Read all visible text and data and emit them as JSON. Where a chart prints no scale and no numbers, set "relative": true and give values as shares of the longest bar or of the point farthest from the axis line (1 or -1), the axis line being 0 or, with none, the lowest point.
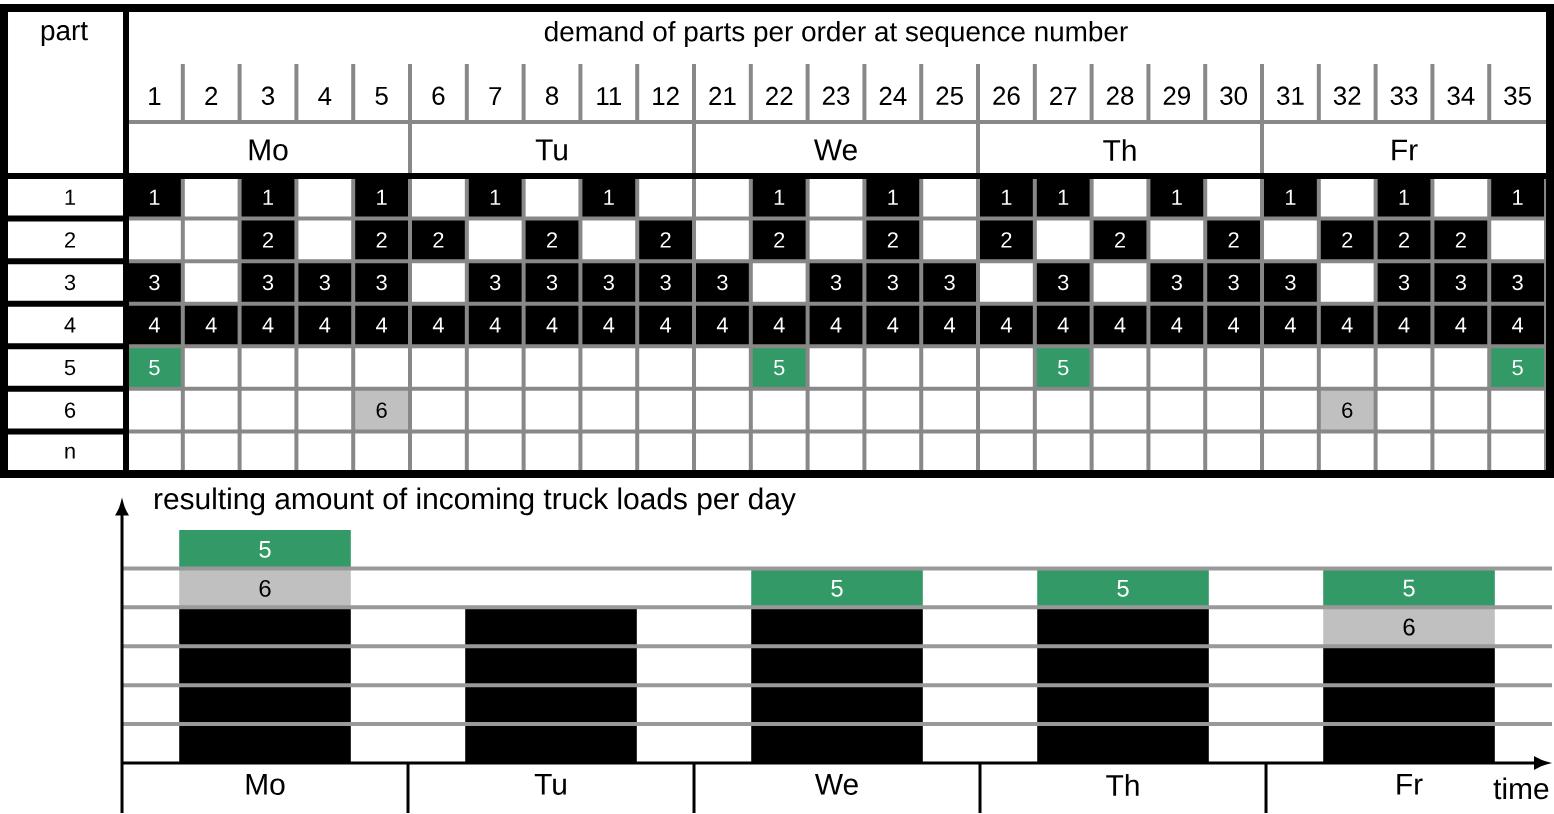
{
  "chart_data": [
    {
      "type": "heatmap",
      "title": "demand of parts per order at sequence number",
      "ylabel": "part",
      "categories": [
        "1",
        "2",
        "3",
        "4",
        "5",
        "6",
        "7",
        "8",
        "11",
        "12",
        "21",
        "22",
        "23",
        "24",
        "25",
        "26",
        "27",
        "28",
        "29",
        "30",
        "31",
        "32",
        "33",
        "34",
        "35"
      ],
      "y_categories": [
        "1",
        "2",
        "3",
        "4",
        "5",
        "6",
        "n"
      ],
      "colors": [
        "#000000",
        "#000000",
        "#000000",
        "#000000",
        "#339966",
        "#c0c0c0",
        "#000000"
      ],
      "cells": [
        [
          1,
          null,
          1,
          null,
          1,
          null,
          1,
          null,
          1,
          null,
          null,
          1,
          null,
          1,
          null,
          1,
          1,
          null,
          1,
          null,
          1,
          null,
          1,
          null,
          1
        ],
        [
          null,
          null,
          2,
          null,
          2,
          2,
          null,
          2,
          null,
          2,
          null,
          2,
          null,
          2,
          null,
          2,
          null,
          2,
          null,
          2,
          null,
          2,
          2,
          2,
          null
        ],
        [
          3,
          null,
          3,
          3,
          3,
          null,
          3,
          3,
          3,
          3,
          3,
          null,
          3,
          3,
          3,
          null,
          3,
          null,
          3,
          3,
          3,
          null,
          3,
          3,
          3
        ],
        [
          4,
          4,
          4,
          4,
          4,
          4,
          4,
          4,
          4,
          4,
          4,
          4,
          4,
          4,
          4,
          4,
          4,
          4,
          4,
          4,
          4,
          4,
          4,
          4,
          4
        ],
        [
          5,
          null,
          null,
          null,
          null,
          null,
          null,
          null,
          null,
          null,
          null,
          5,
          null,
          null,
          null,
          null,
          5,
          null,
          null,
          null,
          null,
          null,
          null,
          null,
          5
        ],
        [
          null,
          null,
          null,
          null,
          6,
          null,
          null,
          null,
          null,
          null,
          null,
          null,
          null,
          null,
          null,
          null,
          null,
          null,
          null,
          null,
          null,
          6,
          null,
          null,
          null
        ],
        [
          null,
          null,
          null,
          null,
          null,
          null,
          null,
          null,
          null,
          null,
          null,
          null,
          null,
          null,
          null,
          null,
          null,
          null,
          null,
          null,
          null,
          null,
          null,
          null,
          null
        ]
      ],
      "cell_labels": [
        [
          "1",
          null,
          "1",
          null,
          "1",
          null,
          "1",
          null,
          "1",
          null,
          null,
          "1",
          null,
          "1",
          null,
          "1",
          "1",
          null,
          "1",
          null,
          "1",
          null,
          "1",
          null,
          "1"
        ],
        [
          null,
          null,
          "2",
          null,
          "2",
          "2",
          null,
          "2",
          null,
          "2",
          null,
          "2",
          null,
          "2",
          null,
          "2",
          null,
          "2",
          null,
          "2",
          null,
          "2",
          "2",
          "2",
          null
        ],
        [
          "3",
          null,
          "3",
          "3",
          "3",
          null,
          "3",
          "3",
          "3",
          "3",
          "3",
          null,
          "3",
          "3",
          "3",
          null,
          "3",
          null,
          "3",
          "3",
          "3",
          null,
          "3",
          "3",
          "3"
        ],
        [
          "4",
          "4",
          "4",
          "4",
          "4",
          "4",
          "4",
          "4",
          "4",
          "4",
          "4",
          "4",
          "4",
          "4",
          "4",
          "4",
          "4",
          "4",
          "4",
          "4",
          "4",
          "4",
          "4",
          "4",
          "4"
        ],
        [
          "5",
          null,
          null,
          null,
          null,
          null,
          null,
          null,
          null,
          null,
          null,
          "5",
          null,
          null,
          null,
          null,
          "5",
          null,
          null,
          null,
          null,
          null,
          null,
          null,
          "5"
        ],
        [
          null,
          null,
          null,
          null,
          "6",
          null,
          null,
          null,
          null,
          null,
          null,
          null,
          null,
          null,
          null,
          null,
          null,
          null,
          null,
          null,
          null,
          "6",
          null,
          null,
          null
        ],
        [
          null,
          null,
          null,
          null,
          null,
          null,
          null,
          null,
          null,
          null,
          null,
          null,
          null,
          null,
          null,
          null,
          null,
          null,
          null,
          null,
          null,
          null,
          null,
          null,
          null
        ]
      ],
      "annotations": [
        "Mo",
        "Tu",
        "We",
        "Th",
        "Fr"
      ]
    },
    {
      "type": "bar",
      "title": "resulting amount of incoming truck loads per day",
      "xlabel": "time",
      "relative": true,
      "stacked": true,
      "grid": true,
      "categories": [
        "Mo",
        "Tu",
        "We",
        "Th",
        "Fr"
      ],
      "series": [
        {
          "color": "#000000",
          "values": [
            0.666,
            0.666,
            0.666,
            0.666,
            0.5
          ]
        },
        {
          "name": "6",
          "color": "#c0c0c0",
          "values": [
            0.167,
            null,
            null,
            null,
            0.167
          ]
        },
        {
          "name": "5",
          "color": "#339966",
          "values": [
            0.167,
            null,
            0.167,
            0.167,
            0.167
          ]
        }
      ]
    }
  ]
}
